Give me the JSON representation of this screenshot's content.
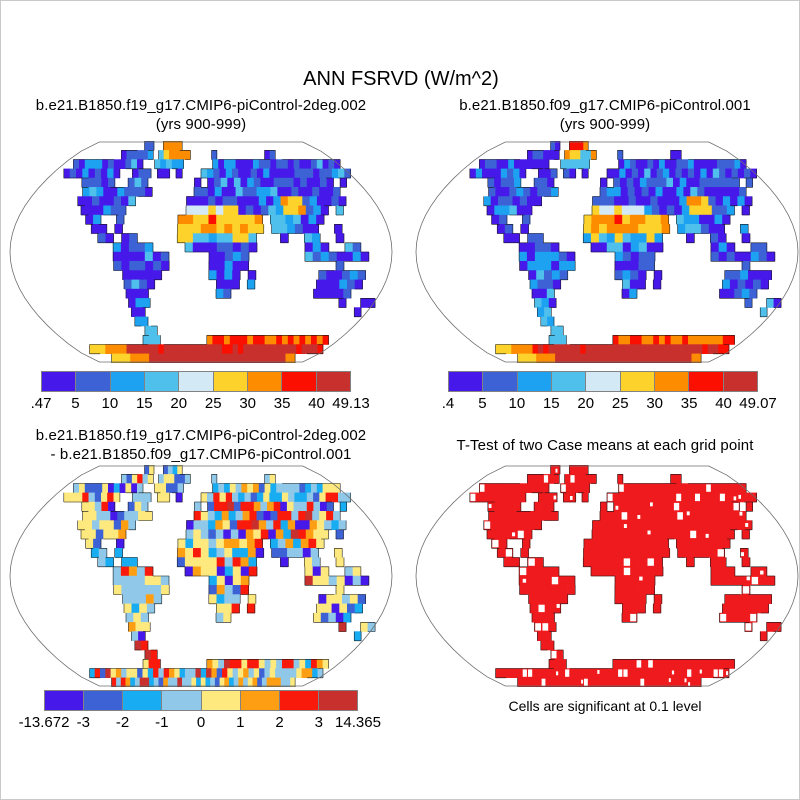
{
  "title": "ANN FSRVD (W/m^2)",
  "panels": {
    "top_left": {
      "title_line1": "b.e21.B1850.f19_g17.CMIP6-piControl-2deg.002",
      "title_line2": "(yrs 900-999)",
      "colorbar_labels": [
        ".47",
        "5",
        "10",
        "15",
        "20",
        "25",
        "30",
        "35",
        "40",
        "49.13"
      ],
      "colorbar_colors": [
        "#4618ea",
        "#3d62d6",
        "#1ca2f1",
        "#4fc0ec",
        "#d3e9f6",
        "#fdd22a",
        "#fe8c01",
        "#fa0f00",
        "#c8302e"
      ]
    },
    "top_right": {
      "title_line1": "b.e21.B1850.f09_g17.CMIP6-piControl.001",
      "title_line2": "(yrs 900-999)",
      "colorbar_labels": [
        ".4",
        "5",
        "10",
        "15",
        "20",
        "25",
        "30",
        "35",
        "40",
        "49.07"
      ],
      "colorbar_colors": [
        "#4618ea",
        "#3d62d6",
        "#1ca2f1",
        "#4fc0ec",
        "#d3e9f6",
        "#fdd22a",
        "#fe8c01",
        "#fa0f00",
        "#c8302e"
      ]
    },
    "bottom_left": {
      "title_line1": "b.e21.B1850.f19_g17.CMIP6-piControl-2deg.002",
      "title_line2": "- b.e21.B1850.f09_g17.CMIP6-piControl.001",
      "colorbar_labels": [
        "-13.672",
        "-3",
        "-2",
        "-1",
        "0",
        "1",
        "2",
        "3",
        "14.365"
      ],
      "colorbar_colors": [
        "#4618ea",
        "#3d62d6",
        "#18acf2",
        "#8fc8e9",
        "#fde97d",
        "#fe9f13",
        "#fa1a0c",
        "#c8302e"
      ]
    },
    "bottom_right": {
      "title": "T-Test of two Case means at each grid point",
      "caption": "Cells are significant at 0.1 level",
      "significant_color": "#ee1a1d"
    }
  },
  "map_style": {
    "ocean": "#ffffff",
    "outline": "#6e6e6e",
    "coast": "#151515"
  },
  "chart_data": [
    {
      "type": "heatmap",
      "subtype": "global-map",
      "projection": "robinson",
      "variable": "ANN FSRVD",
      "units": "W/m^2",
      "title": "b.e21.B1850.f19_g17.CMIP6-piControl-2deg.002 (yrs 900-999)",
      "min": 0.47,
      "max": 49.13,
      "contour_levels": [
        5,
        10,
        15,
        20,
        25,
        30,
        35,
        40
      ],
      "colorbar_labels": [
        ".47",
        "5",
        "10",
        "15",
        "20",
        "25",
        "30",
        "35",
        "40",
        "49.13"
      ],
      "palette": [
        "#4618ea",
        "#3d62d6",
        "#1ca2f1",
        "#4fc0ec",
        "#d3e9f6",
        "#fdd22a",
        "#fe8c01",
        "#fa0f00",
        "#c8302e"
      ],
      "legend_position": "below"
    },
    {
      "type": "heatmap",
      "subtype": "global-map",
      "projection": "robinson",
      "variable": "ANN FSRVD",
      "units": "W/m^2",
      "title": "b.e21.B1850.f09_g17.CMIP6-piControl.001 (yrs 900-999)",
      "min": 0.4,
      "max": 49.07,
      "contour_levels": [
        5,
        10,
        15,
        20,
        25,
        30,
        35,
        40
      ],
      "colorbar_labels": [
        ".4",
        "5",
        "10",
        "15",
        "20",
        "25",
        "30",
        "35",
        "40",
        "49.07"
      ],
      "palette": [
        "#4618ea",
        "#3d62d6",
        "#1ca2f1",
        "#4fc0ec",
        "#d3e9f6",
        "#fdd22a",
        "#fe8c01",
        "#fa0f00",
        "#c8302e"
      ],
      "legend_position": "below"
    },
    {
      "type": "heatmap",
      "subtype": "difference-map",
      "projection": "robinson",
      "variable": "ANN FSRVD difference",
      "units": "W/m^2",
      "title": "b.e21.B1850.f19_g17.CMIP6-piControl-2deg.002 - b.e21.B1850.f09_g17.CMIP6-piControl.001",
      "min": -13.672,
      "max": 14.365,
      "contour_levels": [
        -3,
        -2,
        -1,
        0,
        1,
        2,
        3
      ],
      "colorbar_labels": [
        "-13.672",
        "-3",
        "-2",
        "-1",
        "0",
        "1",
        "2",
        "3",
        "14.365"
      ],
      "palette": [
        "#4618ea",
        "#3d62d6",
        "#18acf2",
        "#8fc8e9",
        "#fde97d",
        "#fe9f13",
        "#fa1a0c",
        "#c8302e"
      ],
      "legend_position": "below"
    },
    {
      "type": "heatmap",
      "subtype": "significance-mask",
      "projection": "robinson",
      "title": "T-Test of two Case means at each grid point",
      "note": "Cells are significant at 0.1 level",
      "significant_color": "#ee1a1d",
      "not_significant_color": "#ffffff"
    }
  ]
}
